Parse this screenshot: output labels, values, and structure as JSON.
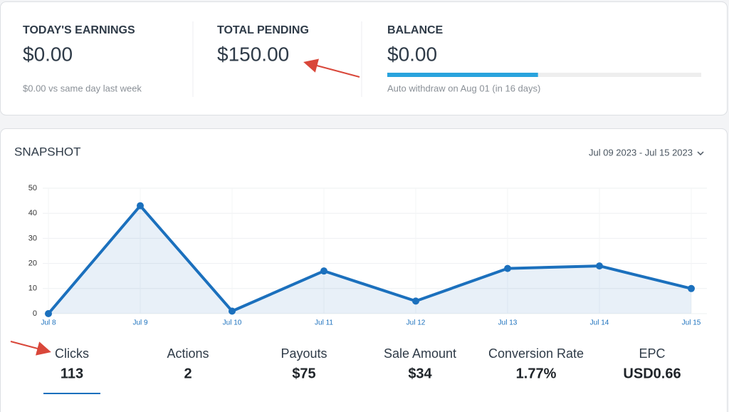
{
  "cards": [
    {
      "title": "TODAY'S EARNINGS",
      "value": "$0.00",
      "note": "$0.00 vs same day last week"
    },
    {
      "title": "TOTAL PENDING",
      "value": "$150.00"
    },
    {
      "title": "BALANCE",
      "value": "$0.00",
      "note": "Auto withdraw on Aug 01 (in 16 days)",
      "progress": 48
    }
  ],
  "snapshot": {
    "title": "SNAPSHOT",
    "date_range": "Jul 09 2023 - Jul 15 2023"
  },
  "chart_data": {
    "type": "line",
    "categories": [
      "Jul 8",
      "Jul 9",
      "Jul 10",
      "Jul 11",
      "Jul 12",
      "Jul 13",
      "Jul 14",
      "Jul 15"
    ],
    "values": [
      0,
      43,
      1,
      17,
      5,
      18,
      19,
      10
    ],
    "color": "#1b70bd",
    "area": true,
    "ylim": [
      0,
      50
    ],
    "yticks": [
      0,
      10,
      20,
      30,
      40,
      50
    ],
    "grid": true
  },
  "metrics": [
    {
      "label": "Clicks",
      "value": "113"
    },
    {
      "label": "Actions",
      "value": "2"
    },
    {
      "label": "Payouts",
      "value": "$75"
    },
    {
      "label": "Sale Amount",
      "value": "$34"
    },
    {
      "label": "Conversion Rate",
      "value": "1.77%"
    },
    {
      "label": "EPC",
      "value": "USD0.66"
    }
  ]
}
